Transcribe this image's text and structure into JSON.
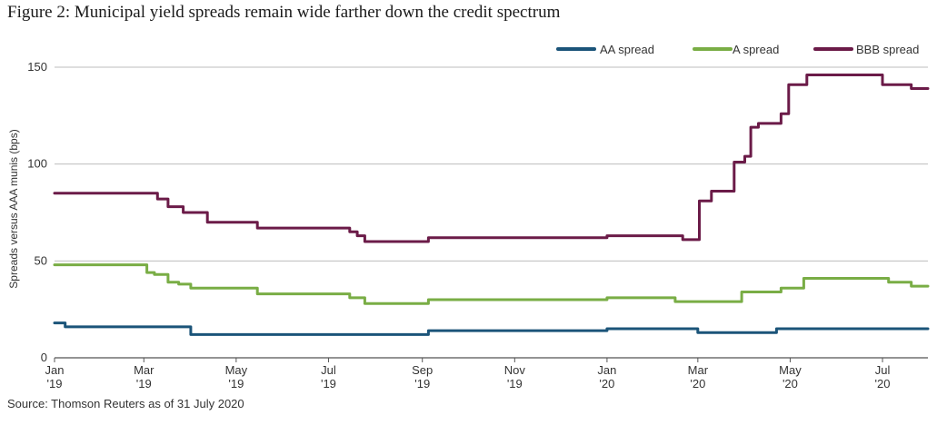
{
  "title": "Figure 2: Municipal yield spreads remain wide farther down the credit spectrum",
  "source": "Source: Thomson Reuters as of 31 July 2020",
  "chart_data": {
    "type": "line",
    "ylabel": "Spreads versus AAA munis (bps)",
    "xlabel": "",
    "ylim": [
      0,
      150
    ],
    "yticks": [
      0,
      50,
      100,
      150
    ],
    "xlim": [
      "2019-01-01",
      "2020-07-31"
    ],
    "xticks": [
      {
        "date": "2019-01-01",
        "month": "Jan",
        "year": "'19"
      },
      {
        "date": "2019-03-01",
        "month": "Mar",
        "year": "'19"
      },
      {
        "date": "2019-05-01",
        "month": "May",
        "year": "'19"
      },
      {
        "date": "2019-07-01",
        "month": "Jul",
        "year": "'19"
      },
      {
        "date": "2019-09-01",
        "month": "Sep",
        "year": "'19"
      },
      {
        "date": "2019-11-01",
        "month": "Nov",
        "year": "'19"
      },
      {
        "date": "2020-01-01",
        "month": "Jan",
        "year": "'20"
      },
      {
        "date": "2020-03-01",
        "month": "Mar",
        "year": "'20"
      },
      {
        "date": "2020-05-01",
        "month": "May",
        "year": "'20"
      },
      {
        "date": "2020-07-01",
        "month": "Jul",
        "year": "'20"
      }
    ],
    "grid": "horizontal",
    "legend_position": "top-right",
    "series": [
      {
        "name": "AA spread",
        "color": "#1b5479",
        "step": true,
        "points": [
          [
            "2019-01-01",
            18
          ],
          [
            "2019-01-08",
            16
          ],
          [
            "2019-04-01",
            12
          ],
          [
            "2019-09-05",
            14
          ],
          [
            "2020-01-01",
            15
          ],
          [
            "2020-02-25",
            15
          ],
          [
            "2020-03-01",
            13
          ],
          [
            "2020-04-20",
            13
          ],
          [
            "2020-04-22",
            15
          ],
          [
            "2020-07-31",
            15
          ]
        ]
      },
      {
        "name": "A spread",
        "color": "#79ad45",
        "step": true,
        "points": [
          [
            "2019-01-01",
            48
          ],
          [
            "2019-03-03",
            44
          ],
          [
            "2019-03-08",
            43
          ],
          [
            "2019-03-17",
            39
          ],
          [
            "2019-03-24",
            38
          ],
          [
            "2019-04-01",
            36
          ],
          [
            "2019-05-15",
            33
          ],
          [
            "2019-07-15",
            31
          ],
          [
            "2019-07-25",
            28
          ],
          [
            "2019-09-05",
            30
          ],
          [
            "2020-01-01",
            31
          ],
          [
            "2020-02-15",
            29
          ],
          [
            "2020-03-30",
            34
          ],
          [
            "2020-04-25",
            36
          ],
          [
            "2020-05-10",
            41
          ],
          [
            "2020-07-05",
            39
          ],
          [
            "2020-07-20",
            37
          ],
          [
            "2020-07-31",
            37
          ]
        ]
      },
      {
        "name": "BBB spread",
        "color": "#6b1b48",
        "step": true,
        "points": [
          [
            "2019-01-01",
            85
          ],
          [
            "2019-03-10",
            82
          ],
          [
            "2019-03-17",
            78
          ],
          [
            "2019-03-27",
            75
          ],
          [
            "2019-04-12",
            70
          ],
          [
            "2019-05-15",
            67
          ],
          [
            "2019-07-15",
            65
          ],
          [
            "2019-07-20",
            63
          ],
          [
            "2019-07-25",
            60
          ],
          [
            "2019-09-05",
            62
          ],
          [
            "2020-01-01",
            63
          ],
          [
            "2020-02-20",
            61
          ],
          [
            "2020-03-02",
            81
          ],
          [
            "2020-03-10",
            86
          ],
          [
            "2020-03-25",
            101
          ],
          [
            "2020-04-01",
            104
          ],
          [
            "2020-04-05",
            119
          ],
          [
            "2020-04-10",
            121
          ],
          [
            "2020-04-25",
            126
          ],
          [
            "2020-04-30",
            141
          ],
          [
            "2020-05-12",
            146
          ],
          [
            "2020-07-01",
            141
          ],
          [
            "2020-07-20",
            139
          ],
          [
            "2020-07-31",
            139
          ]
        ]
      }
    ]
  }
}
